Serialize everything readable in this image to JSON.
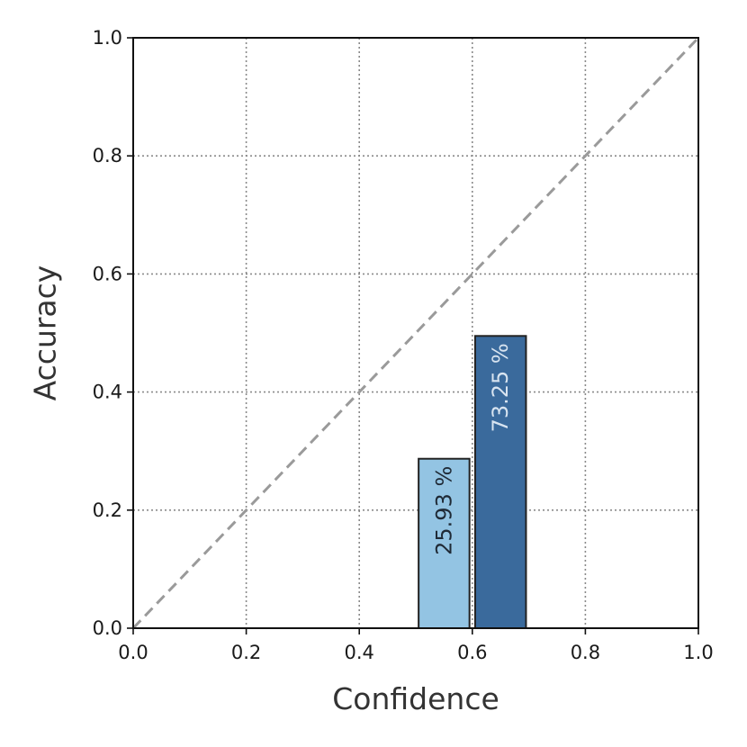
{
  "chart_data": {
    "type": "bar",
    "xlabel": "Confidence",
    "ylabel": "Accuracy",
    "xlim": [
      0.0,
      1.0
    ],
    "ylim": [
      0.0,
      1.0
    ],
    "xticks": [
      "0.0",
      "0.2",
      "0.4",
      "0.6",
      "0.8",
      "1.0"
    ],
    "yticks": [
      "0.0",
      "0.2",
      "0.4",
      "0.6",
      "0.8",
      "1.0"
    ],
    "grid": true,
    "diagonal_reference": true,
    "bars": [
      {
        "x_start": 0.505,
        "x_end": 0.595,
        "accuracy": 0.287,
        "label": "25.93 %",
        "color": "#93c4e3",
        "label_color": "#1f2a36"
      },
      {
        "x_start": 0.605,
        "x_end": 0.695,
        "accuracy": 0.495,
        "label": "73.25 %",
        "color": "#3a6a9c",
        "label_color": "#d8e4f0"
      }
    ],
    "colors": {
      "diagonal": "#9a9a9a",
      "grid": "#8a8a8a",
      "edge": "#222222"
    }
  }
}
